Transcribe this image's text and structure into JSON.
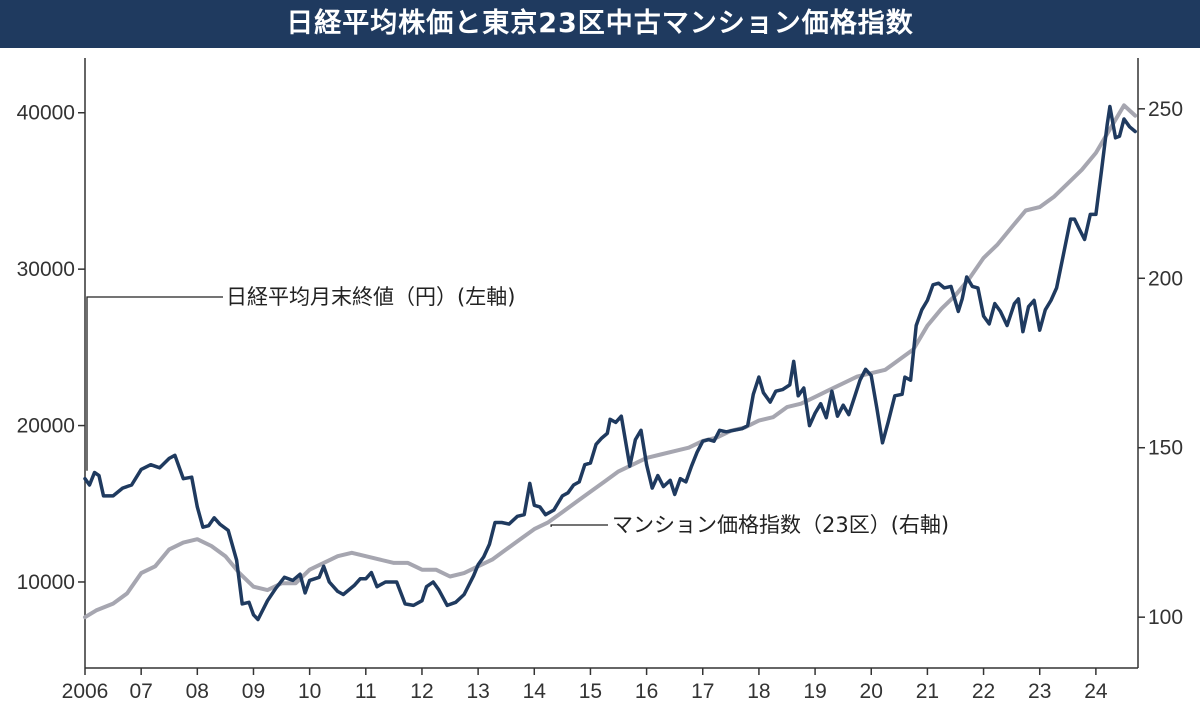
{
  "chart_data": {
    "type": "line",
    "title": "日経平均株価と東京23区中古マンション価格指数",
    "x_tick_labels": [
      "2006",
      "07",
      "08",
      "09",
      "10",
      "11",
      "12",
      "13",
      "14",
      "15",
      "16",
      "17",
      "18",
      "19",
      "20",
      "21",
      "22",
      "23",
      "24"
    ],
    "x_tick_years": [
      2006,
      2007,
      2008,
      2009,
      2010,
      2011,
      2012,
      2013,
      2014,
      2015,
      2016,
      2017,
      2018,
      2019,
      2020,
      2021,
      2022,
      2023,
      2024
    ],
    "xlim": [
      2006,
      2024.75
    ],
    "y_left": {
      "ticks": [
        10000,
        20000,
        30000,
        40000
      ],
      "tick_labels": [
        "10000",
        "20000",
        "30000",
        "40000"
      ],
      "lim": [
        4500,
        43500
      ]
    },
    "y_right": {
      "ticks": [
        100,
        150,
        200,
        250
      ],
      "tick_labels": [
        "100",
        "150",
        "200",
        "250"
      ],
      "lim": [
        85,
        265
      ]
    },
    "colors": {
      "nikkei": "#1f3a5f",
      "mansion": "#a6a6b0",
      "axis": "#333333",
      "title_bg": "#1f3a5f"
    },
    "series": [
      {
        "name": "日経平均月末終値（円）(左軸)",
        "axis": "left",
        "points": [
          [
            2006.0,
            16600
          ],
          [
            2006.08,
            16200
          ],
          [
            2006.17,
            17000
          ],
          [
            2006.25,
            16800
          ],
          [
            2006.33,
            15500
          ],
          [
            2006.5,
            15500
          ],
          [
            2006.67,
            16000
          ],
          [
            2006.83,
            16200
          ],
          [
            2007.0,
            17200
          ],
          [
            2007.17,
            17500
          ],
          [
            2007.33,
            17300
          ],
          [
            2007.5,
            17900
          ],
          [
            2007.6,
            18100
          ],
          [
            2007.75,
            16600
          ],
          [
            2007.9,
            16700
          ],
          [
            2008.0,
            14800
          ],
          [
            2008.1,
            13500
          ],
          [
            2008.2,
            13600
          ],
          [
            2008.3,
            14100
          ],
          [
            2008.4,
            13700
          ],
          [
            2008.55,
            13300
          ],
          [
            2008.7,
            11400
          ],
          [
            2008.8,
            8600
          ],
          [
            2008.92,
            8700
          ],
          [
            2009.0,
            7900
          ],
          [
            2009.08,
            7600
          ],
          [
            2009.25,
            8800
          ],
          [
            2009.4,
            9600
          ],
          [
            2009.55,
            10300
          ],
          [
            2009.7,
            10100
          ],
          [
            2009.83,
            10500
          ],
          [
            2009.92,
            9300
          ],
          [
            2010.0,
            10100
          ],
          [
            2010.17,
            10300
          ],
          [
            2010.25,
            11000
          ],
          [
            2010.35,
            10000
          ],
          [
            2010.5,
            9400
          ],
          [
            2010.6,
            9200
          ],
          [
            2010.8,
            9800
          ],
          [
            2010.9,
            10200
          ],
          [
            2011.0,
            10200
          ],
          [
            2011.1,
            10600
          ],
          [
            2011.2,
            9700
          ],
          [
            2011.35,
            10000
          ],
          [
            2011.55,
            10000
          ],
          [
            2011.7,
            8600
          ],
          [
            2011.85,
            8500
          ],
          [
            2012.0,
            8800
          ],
          [
            2012.08,
            9700
          ],
          [
            2012.2,
            10000
          ],
          [
            2012.3,
            9500
          ],
          [
            2012.45,
            8500
          ],
          [
            2012.6,
            8700
          ],
          [
            2012.75,
            9200
          ],
          [
            2012.92,
            10400
          ],
          [
            2013.0,
            11100
          ],
          [
            2013.1,
            11600
          ],
          [
            2013.2,
            12400
          ],
          [
            2013.3,
            13800
          ],
          [
            2013.42,
            13800
          ],
          [
            2013.55,
            13700
          ],
          [
            2013.7,
            14200
          ],
          [
            2013.82,
            14300
          ],
          [
            2013.92,
            16300
          ],
          [
            2014.0,
            14900
          ],
          [
            2014.1,
            14800
          ],
          [
            2014.2,
            14300
          ],
          [
            2014.35,
            14600
          ],
          [
            2014.5,
            15500
          ],
          [
            2014.6,
            15700
          ],
          [
            2014.7,
            16200
          ],
          [
            2014.8,
            16400
          ],
          [
            2014.9,
            17500
          ],
          [
            2015.0,
            17600
          ],
          [
            2015.1,
            18800
          ],
          [
            2015.2,
            19200
          ],
          [
            2015.3,
            19500
          ],
          [
            2015.35,
            20400
          ],
          [
            2015.45,
            20200
          ],
          [
            2015.55,
            20600
          ],
          [
            2015.7,
            17400
          ],
          [
            2015.8,
            19100
          ],
          [
            2015.9,
            19700
          ],
          [
            2016.0,
            17500
          ],
          [
            2016.1,
            16000
          ],
          [
            2016.2,
            16800
          ],
          [
            2016.3,
            16100
          ],
          [
            2016.42,
            16500
          ],
          [
            2016.5,
            15600
          ],
          [
            2016.6,
            16600
          ],
          [
            2016.7,
            16400
          ],
          [
            2016.8,
            17400
          ],
          [
            2016.9,
            18300
          ],
          [
            2017.0,
            19000
          ],
          [
            2017.1,
            19100
          ],
          [
            2017.2,
            19000
          ],
          [
            2017.3,
            19700
          ],
          [
            2017.42,
            19600
          ],
          [
            2017.55,
            19700
          ],
          [
            2017.7,
            19800
          ],
          [
            2017.8,
            20000
          ],
          [
            2017.9,
            22000
          ],
          [
            2018.0,
            23100
          ],
          [
            2018.08,
            22100
          ],
          [
            2018.2,
            21500
          ],
          [
            2018.3,
            22200
          ],
          [
            2018.42,
            22300
          ],
          [
            2018.55,
            22600
          ],
          [
            2018.62,
            24100
          ],
          [
            2018.7,
            21900
          ],
          [
            2018.8,
            22400
          ],
          [
            2018.9,
            20000
          ],
          [
            2019.0,
            20800
          ],
          [
            2019.1,
            21400
          ],
          [
            2019.2,
            20500
          ],
          [
            2019.3,
            22200
          ],
          [
            2019.4,
            20600
          ],
          [
            2019.5,
            21300
          ],
          [
            2019.6,
            20700
          ],
          [
            2019.7,
            21800
          ],
          [
            2019.8,
            22900
          ],
          [
            2019.9,
            23600
          ],
          [
            2020.0,
            23200
          ],
          [
            2020.1,
            21100
          ],
          [
            2020.2,
            18900
          ],
          [
            2020.3,
            20200
          ],
          [
            2020.42,
            21900
          ],
          [
            2020.55,
            22000
          ],
          [
            2020.6,
            23100
          ],
          [
            2020.7,
            22900
          ],
          [
            2020.8,
            26400
          ],
          [
            2020.9,
            27400
          ],
          [
            2021.0,
            28000
          ],
          [
            2021.1,
            29000
          ],
          [
            2021.2,
            29100
          ],
          [
            2021.3,
            28800
          ],
          [
            2021.42,
            28900
          ],
          [
            2021.55,
            27300
          ],
          [
            2021.62,
            28100
          ],
          [
            2021.7,
            29500
          ],
          [
            2021.8,
            28900
          ],
          [
            2021.9,
            28800
          ],
          [
            2022.0,
            27000
          ],
          [
            2022.1,
            26500
          ],
          [
            2022.2,
            27800
          ],
          [
            2022.3,
            27300
          ],
          [
            2022.42,
            26400
          ],
          [
            2022.55,
            27800
          ],
          [
            2022.62,
            28100
          ],
          [
            2022.7,
            26000
          ],
          [
            2022.8,
            27600
          ],
          [
            2022.9,
            28000
          ],
          [
            2023.0,
            26100
          ],
          [
            2023.1,
            27400
          ],
          [
            2023.2,
            28000
          ],
          [
            2023.3,
            28800
          ],
          [
            2023.42,
            30900
          ],
          [
            2023.55,
            33200
          ],
          [
            2023.62,
            33200
          ],
          [
            2023.7,
            32600
          ],
          [
            2023.8,
            31900
          ],
          [
            2023.9,
            33500
          ],
          [
            2024.0,
            33500
          ],
          [
            2024.1,
            36300
          ],
          [
            2024.2,
            39200
          ],
          [
            2024.25,
            40400
          ],
          [
            2024.35,
            38400
          ],
          [
            2024.42,
            38500
          ],
          [
            2024.5,
            39600
          ],
          [
            2024.6,
            39100
          ],
          [
            2024.7,
            38800
          ]
        ]
      },
      {
        "name": "マンション価格指数（23区）(右軸)",
        "axis": "right",
        "points": [
          [
            2006.0,
            100
          ],
          [
            2006.2,
            102
          ],
          [
            2006.5,
            104
          ],
          [
            2006.75,
            107
          ],
          [
            2007.0,
            113
          ],
          [
            2007.25,
            115
          ],
          [
            2007.5,
            120
          ],
          [
            2007.75,
            122
          ],
          [
            2008.0,
            123
          ],
          [
            2008.25,
            121
          ],
          [
            2008.5,
            118
          ],
          [
            2008.75,
            113
          ],
          [
            2009.0,
            109
          ],
          [
            2009.25,
            108
          ],
          [
            2009.5,
            110
          ],
          [
            2009.75,
            110
          ],
          [
            2010.0,
            114
          ],
          [
            2010.25,
            116
          ],
          [
            2010.5,
            118
          ],
          [
            2010.75,
            119
          ],
          [
            2011.0,
            118
          ],
          [
            2011.25,
            117
          ],
          [
            2011.5,
            116
          ],
          [
            2011.75,
            116
          ],
          [
            2012.0,
            114
          ],
          [
            2012.25,
            114
          ],
          [
            2012.5,
            112
          ],
          [
            2012.75,
            113
          ],
          [
            2013.0,
            115
          ],
          [
            2013.25,
            117
          ],
          [
            2013.5,
            120
          ],
          [
            2013.75,
            123
          ],
          [
            2014.0,
            126
          ],
          [
            2014.25,
            128
          ],
          [
            2014.5,
            131
          ],
          [
            2014.75,
            134
          ],
          [
            2015.0,
            137
          ],
          [
            2015.25,
            140
          ],
          [
            2015.5,
            143
          ],
          [
            2015.75,
            145
          ],
          [
            2016.0,
            147
          ],
          [
            2016.25,
            148
          ],
          [
            2016.5,
            149
          ],
          [
            2016.75,
            150
          ],
          [
            2017.0,
            152
          ],
          [
            2017.25,
            153
          ],
          [
            2017.5,
            155
          ],
          [
            2017.75,
            156
          ],
          [
            2018.0,
            158
          ],
          [
            2018.25,
            159
          ],
          [
            2018.5,
            162
          ],
          [
            2018.75,
            163
          ],
          [
            2019.0,
            165
          ],
          [
            2019.25,
            167
          ],
          [
            2019.5,
            169
          ],
          [
            2019.75,
            171
          ],
          [
            2020.0,
            172
          ],
          [
            2020.25,
            173
          ],
          [
            2020.5,
            176
          ],
          [
            2020.75,
            179
          ],
          [
            2021.0,
            186
          ],
          [
            2021.25,
            191
          ],
          [
            2021.5,
            195
          ],
          [
            2021.75,
            200
          ],
          [
            2022.0,
            206
          ],
          [
            2022.25,
            210
          ],
          [
            2022.5,
            215
          ],
          [
            2022.75,
            220
          ],
          [
            2023.0,
            221
          ],
          [
            2023.25,
            224
          ],
          [
            2023.5,
            228
          ],
          [
            2023.75,
            232
          ],
          [
            2024.0,
            237
          ],
          [
            2024.25,
            244
          ],
          [
            2024.5,
            251
          ],
          [
            2024.7,
            248
          ]
        ]
      }
    ],
    "annotations": [
      {
        "text": "日経平均月末終値（円）(左軸)",
        "series": 0
      },
      {
        "text": "マンション価格指数（23区）(右軸)",
        "series": 1
      }
    ]
  }
}
